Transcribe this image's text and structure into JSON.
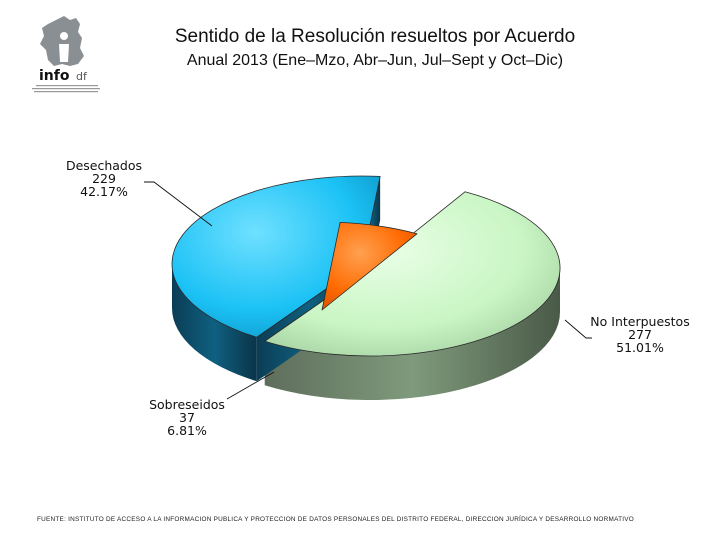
{
  "header": {
    "title": "Sentido de la Resolución resueltos por Acuerdo",
    "subtitle": "Anual 2013 (Ene–Mzo, Abr–Jun, Jul–Sept y Oct–Dic)",
    "logo_text": "info",
    "logo_suffix": "df"
  },
  "chart_data": {
    "type": "pie",
    "title": "Sentido de la Resolución resueltos por Acuerdo",
    "subtitle": "Anual 2013 (Ene–Mzo, Abr–Jun, Jul–Sept y Oct–Dic)",
    "categories": [
      "No Interpuestos",
      "Desechados",
      "Sobreseidos"
    ],
    "values": [
      277,
      229,
      37
    ],
    "percent_labels": [
      "51.01%",
      "42.17%",
      "6.81%"
    ],
    "value_labels": [
      "277",
      "229",
      "37"
    ],
    "colors": {
      "No Interpuestos": "#c9f5c4",
      "Desechados": "#1cc2f5",
      "Sobreseidos": "#ff6a00"
    },
    "legend": "none",
    "style": "3d-exploded"
  },
  "footer": {
    "source": "FUENTE: INSTITUTO DE ACCESO A LA INFORMACION PUBLICA Y PROTECCION DE DATOS PERSONALES DEL DISTRITO FEDERAL, DIRECCION JURÍDICA Y DESARROLLO NORMATIVO"
  }
}
